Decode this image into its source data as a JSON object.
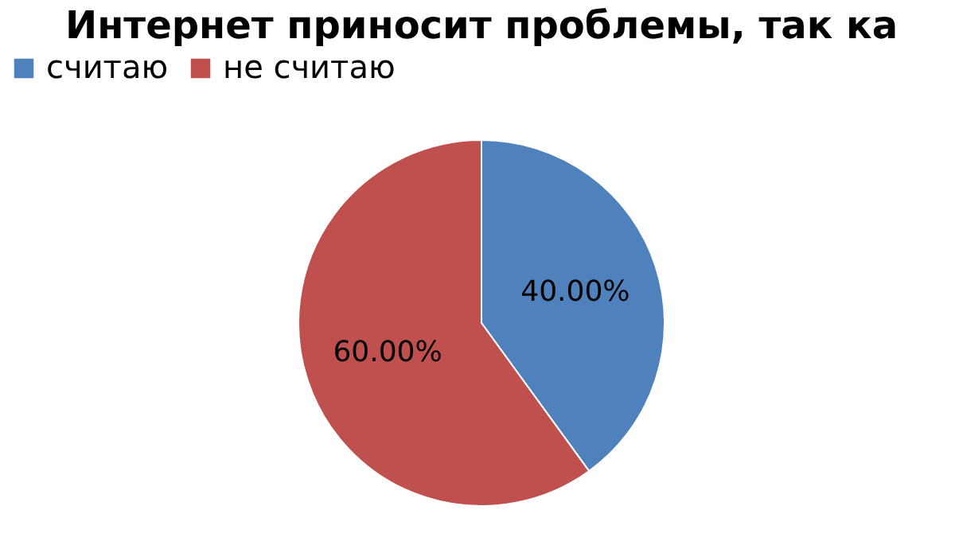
{
  "chart_data": {
    "type": "pie",
    "title": "Интернет приносит проблемы, так ка",
    "categories": [
      "считаю",
      "не считаю"
    ],
    "values": [
      40,
      60
    ],
    "colors": [
      "#4f81bd",
      "#c0504d"
    ],
    "value_labels": [
      "40.00%",
      "60.00%"
    ],
    "legend": "top"
  }
}
